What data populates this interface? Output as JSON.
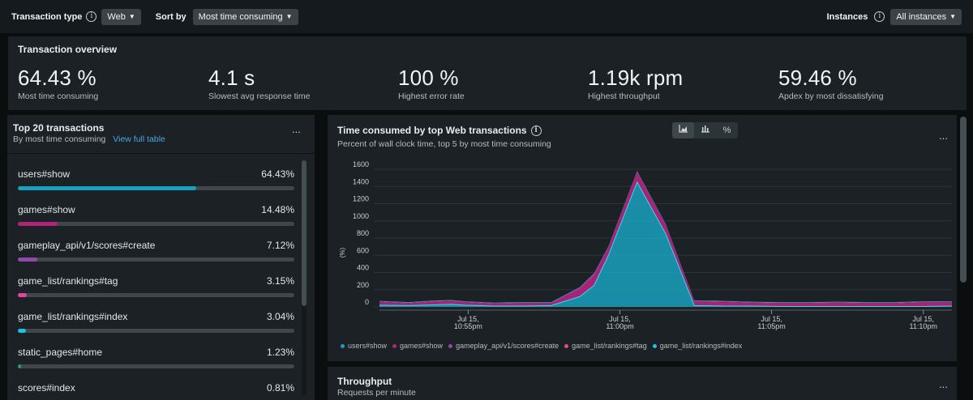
{
  "filters": {
    "transaction_type_label": "Transaction type",
    "transaction_type_value": "Web",
    "sort_by_label": "Sort by",
    "sort_by_value": "Most time consuming",
    "instances_label": "Instances",
    "instances_value": "All instances"
  },
  "overview": {
    "title": "Transaction overview",
    "metrics": [
      {
        "value": "64.43 %",
        "label": "Most time consuming"
      },
      {
        "value": "4.1 s",
        "label": "Slowest avg response time"
      },
      {
        "value": "100 %",
        "label": "Highest error rate"
      },
      {
        "value": "1.19k rpm",
        "label": "Highest throughput"
      },
      {
        "value": "59.46 %",
        "label": "Apdex by most dissatisfying"
      }
    ]
  },
  "top_transactions": {
    "title": "Top 20 transactions",
    "subtitle": "By most time consuming",
    "link": "View full table",
    "menu": "...",
    "items": [
      {
        "name": "users#show",
        "pct": "64.43%",
        "fraction": 0.6443,
        "color": "#1aa0bd"
      },
      {
        "name": "games#show",
        "pct": "14.48%",
        "fraction": 0.1448,
        "color": "#b3237a"
      },
      {
        "name": "gameplay_api/v1/scores#create",
        "pct": "7.12%",
        "fraction": 0.0712,
        "color": "#8f4aa6"
      },
      {
        "name": "game_list/rankings#tag",
        "pct": "3.15%",
        "fraction": 0.0315,
        "color": "#e0489e"
      },
      {
        "name": "game_list/rankings#index",
        "pct": "3.04%",
        "fraction": 0.0304,
        "color": "#1ec3e0"
      },
      {
        "name": "static_pages#home",
        "pct": "1.23%",
        "fraction": 0.0123,
        "color": "#2f9a6e"
      },
      {
        "name": "scores#index",
        "pct": "0.81%",
        "fraction": 0.0081,
        "color": "#5a7fd6"
      }
    ]
  },
  "time_chart": {
    "title": "Time consumed by top Web transactions",
    "subtitle": "Percent of wall clock time, top 5 by most time consuming",
    "menu": "...",
    "toggle_icons": [
      "area-chart-icon",
      "bar-chart-icon",
      "percent-icon"
    ]
  },
  "chart_data": {
    "type": "area",
    "ylabel": "(%)",
    "ylim": [
      0,
      1600
    ],
    "yticks": [
      0,
      200,
      400,
      600,
      800,
      1000,
      1200,
      1400,
      1600
    ],
    "xlim": [
      0,
      20
    ],
    "x_tick_positions": [
      3.1,
      8.4,
      13.7,
      19.0
    ],
    "x_tick_labels": [
      [
        "Jul 15,",
        "10:55pm"
      ],
      [
        "Jul 15,",
        "11:00pm"
      ],
      [
        "Jul 15,",
        "11:05pm"
      ],
      [
        "Jul 15,",
        "11:10pm"
      ]
    ],
    "x": [
      0,
      1,
      2,
      2.5,
      3,
      4,
      5,
      6,
      7,
      7.5,
      8,
      9,
      10,
      11,
      12,
      13,
      14,
      15,
      16,
      17,
      18,
      19,
      20
    ],
    "series": [
      {
        "name": "users#show",
        "color": "#1aa0bd",
        "values": [
          20,
          15,
          25,
          30,
          20,
          10,
          10,
          15,
          120,
          250,
          600,
          1450,
          850,
          15,
          10,
          10,
          5,
          5,
          5,
          5,
          5,
          5,
          10
        ]
      },
      {
        "name": "games#show",
        "color": "#b3237a",
        "values": [
          35,
          25,
          35,
          35,
          30,
          25,
          30,
          25,
          85,
          110,
          80,
          105,
          90,
          45,
          45,
          35,
          35,
          35,
          40,
          35,
          35,
          45,
          40
        ]
      },
      {
        "name": "gameplay_api/v1/scores#create",
        "color": "#8f4aa6",
        "values": [
          5,
          5,
          5,
          5,
          5,
          5,
          5,
          5,
          15,
          20,
          15,
          15,
          15,
          5,
          5,
          5,
          5,
          5,
          5,
          5,
          5,
          5,
          5
        ]
      },
      {
        "name": "game_list/rankings#tag",
        "color": "#e0489e",
        "values": [
          5,
          5,
          5,
          5,
          5,
          5,
          5,
          5,
          5,
          8,
          5,
          5,
          5,
          5,
          5,
          5,
          5,
          5,
          5,
          5,
          5,
          5,
          5
        ]
      },
      {
        "name": "game_list/rankings#index",
        "color": "#1ec3e0",
        "values": [
          5,
          5,
          5,
          5,
          5,
          5,
          5,
          5,
          5,
          5,
          5,
          5,
          5,
          5,
          5,
          5,
          5,
          5,
          5,
          5,
          5,
          5,
          5
        ]
      }
    ]
  },
  "throughput": {
    "title": "Throughput",
    "subtitle": "Requests per minute",
    "menu": "..."
  }
}
